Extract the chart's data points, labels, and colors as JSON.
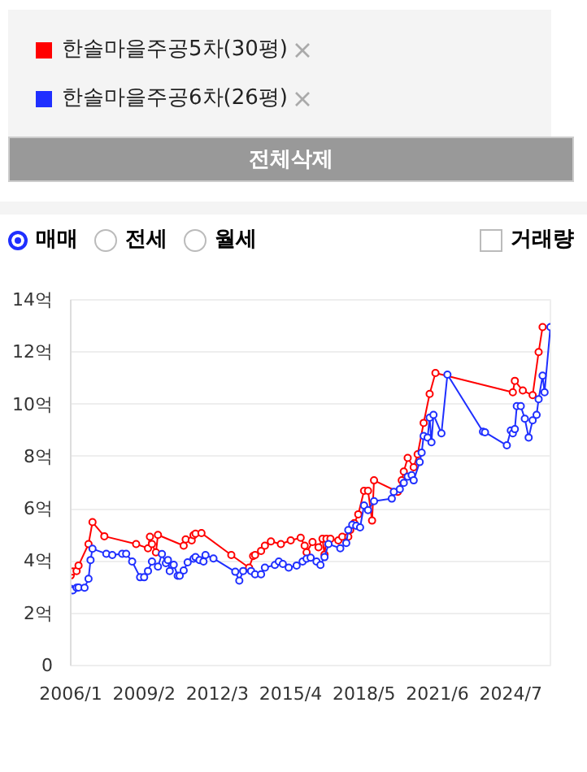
{
  "chart_data": {
    "type": "line",
    "marker": "circle",
    "line_style": "solid",
    "grid": "y",
    "legend": "top",
    "annotations": [
      "전체삭제",
      "매매",
      "전세",
      "월세",
      "거래량"
    ],
    "xlim": [
      "2006-01",
      "2026-03"
    ],
    "xticks": [
      {
        "value": "2006-01",
        "label": "2006/1"
      },
      {
        "value": "2009-02",
        "label": "2009/2"
      },
      {
        "value": "2012-03",
        "label": "2012/3"
      },
      {
        "value": "2015-04",
        "label": "2015/4"
      },
      {
        "value": "2018-05",
        "label": "2018/5"
      },
      {
        "value": "2021-06",
        "label": "2021/6"
      },
      {
        "value": "2024-07",
        "label": "2024/7"
      }
    ],
    "ylim": [
      0,
      14
    ],
    "yticks": [
      0,
      {
        "value": 2,
        "label": "2억"
      },
      {
        "value": 4,
        "label": "4억"
      },
      {
        "value": 6,
        "label": "6억"
      },
      {
        "value": 8,
        "label": "8억"
      },
      {
        "value": 10,
        "label": "10억"
      },
      {
        "value": 12,
        "label": "12억"
      },
      {
        "value": 14,
        "label": "14억"
      }
    ],
    "series": [
      {
        "name": "한솔마을주공5차(30평)",
        "color": "#ff0000",
        "x": [
          "2006-01",
          "2006-02",
          "2006-04",
          "2006-05",
          "2006-10",
          "2006-12",
          "2007-06",
          "2008-10",
          "2009-04",
          "2009-05",
          "2009-06",
          "2009-08",
          "2009-09",
          "2010-10",
          "2010-11",
          "2011-02",
          "2011-03",
          "2011-04",
          "2011-07",
          "2012-10",
          "2013-07",
          "2013-09",
          "2013-10",
          "2014-01",
          "2014-03",
          "2014-06",
          "2014-11",
          "2015-04",
          "2015-09",
          "2015-11",
          "2015-12",
          "2016-03",
          "2016-06",
          "2016-08",
          "2016-09",
          "2016-10",
          "2016-12",
          "2017-04",
          "2017-06",
          "2017-09",
          "2017-10",
          "2017-12",
          "2018-02",
          "2018-05",
          "2018-07",
          "2018-09",
          "2018-10",
          "2019-10",
          "2019-12",
          "2020-01",
          "2020-03",
          "2020-06",
          "2020-08",
          "2020-11",
          "2021-02",
          "2021-05",
          "2024-08",
          "2024-09",
          "2025-01",
          "2025-06",
          "2025-09",
          "2025-11"
        ],
        "values": [
          3.45,
          3.6,
          3.62,
          3.83,
          4.65,
          5.49,
          4.95,
          4.65,
          4.49,
          4.93,
          4.65,
          4.33,
          5.0,
          4.59,
          4.83,
          4.79,
          4.99,
          5.05,
          5.07,
          4.23,
          3.75,
          4.19,
          4.23,
          4.39,
          4.59,
          4.75,
          4.65,
          4.79,
          4.89,
          4.59,
          4.33,
          4.73,
          4.53,
          4.85,
          4.25,
          4.85,
          4.85,
          4.79,
          4.93,
          4.93,
          5.19,
          5.45,
          5.79,
          6.69,
          6.69,
          5.55,
          7.09,
          6.65,
          7.09,
          7.43,
          7.95,
          7.59,
          8.09,
          9.29,
          10.4,
          11.2,
          10.46,
          10.9,
          10.53,
          10.35,
          12.0,
          12.96
        ]
      },
      {
        "name": "한솔마을주공6차(26평)",
        "color": "#1f2fff",
        "x": [
          "2006-01",
          "2006-02",
          "2006-04",
          "2006-05",
          "2006-08",
          "2006-10",
          "2006-11",
          "2006-12",
          "2007-07",
          "2007-10",
          "2008-03",
          "2008-05",
          "2008-08",
          "2008-12",
          "2009-02",
          "2009-04",
          "2009-06",
          "2009-09",
          "2009-11",
          "2010-01",
          "2010-02",
          "2010-03",
          "2010-05",
          "2010-07",
          "2010-08",
          "2010-10",
          "2010-12",
          "2011-03",
          "2011-04",
          "2011-06",
          "2011-08",
          "2011-09",
          "2012-01",
          "2012-12",
          "2013-02",
          "2013-04",
          "2013-08",
          "2013-10",
          "2014-01",
          "2014-03",
          "2014-08",
          "2014-10",
          "2014-12",
          "2015-03",
          "2015-07",
          "2015-10",
          "2015-12",
          "2016-02",
          "2016-05",
          "2016-07",
          "2016-09",
          "2016-11",
          "2017-05",
          "2017-08",
          "2017-09",
          "2017-11",
          "2018-01",
          "2018-03",
          "2018-05",
          "2018-07",
          "2018-10",
          "2019-07",
          "2019-08",
          "2019-11",
          "2020-01",
          "2020-03",
          "2020-05",
          "2020-06",
          "2020-09",
          "2020-10",
          "2020-11",
          "2021-01",
          "2021-02",
          "2021-03",
          "2021-04",
          "2021-08",
          "2021-11",
          "2023-05",
          "2023-06",
          "2024-05",
          "2024-07",
          "2024-08",
          "2024-09",
          "2024-10",
          "2024-12",
          "2025-02",
          "2025-04",
          "2025-06",
          "2025-08",
          "2025-09",
          "2025-11",
          "2025-12",
          "2026-03"
        ],
        "values": [
          2.94,
          2.88,
          2.98,
          2.99,
          2.98,
          3.32,
          4.04,
          4.47,
          4.28,
          4.23,
          4.28,
          4.28,
          3.98,
          3.38,
          3.38,
          3.62,
          3.98,
          3.79,
          4.27,
          3.92,
          4.04,
          3.62,
          3.86,
          3.44,
          3.44,
          3.64,
          3.95,
          4.09,
          4.15,
          4.04,
          3.98,
          4.23,
          4.1,
          3.59,
          3.25,
          3.62,
          3.62,
          3.49,
          3.49,
          3.75,
          3.85,
          3.98,
          3.89,
          3.75,
          3.83,
          3.98,
          4.09,
          4.13,
          3.98,
          3.85,
          4.15,
          4.65,
          4.49,
          4.69,
          5.19,
          5.39,
          5.35,
          5.29,
          6.13,
          5.95,
          6.29,
          6.39,
          6.65,
          6.75,
          6.99,
          7.23,
          7.29,
          7.09,
          7.79,
          8.15,
          8.79,
          8.73,
          9.49,
          8.55,
          9.6,
          8.89,
          11.14,
          8.95,
          8.93,
          8.43,
          9.0,
          8.89,
          9.05,
          9.93,
          9.93,
          9.45,
          8.73,
          9.39,
          9.6,
          10.2,
          11.1,
          10.46,
          12.96
        ]
      }
    ]
  }
}
